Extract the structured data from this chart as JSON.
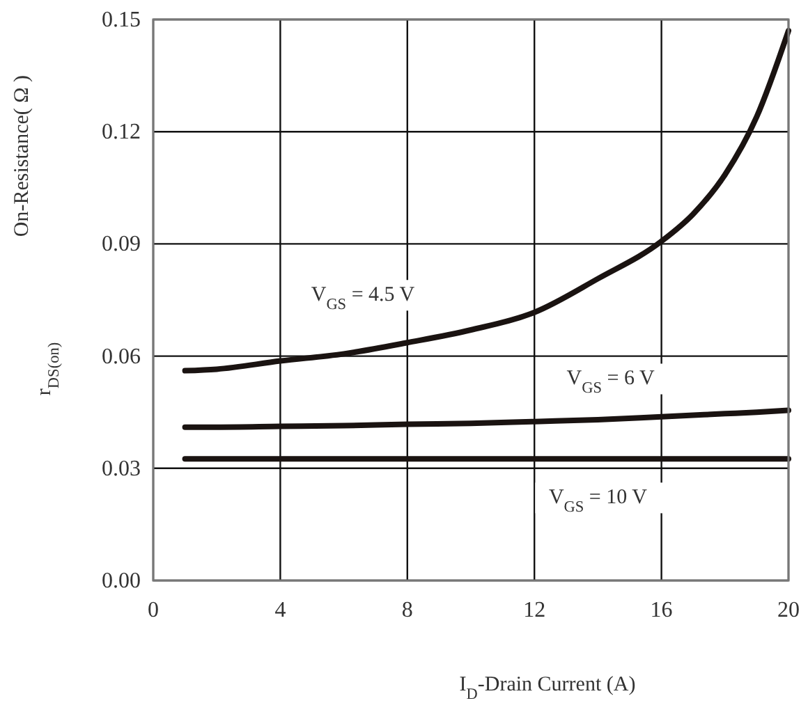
{
  "chart_data": {
    "type": "line",
    "xlabel": "I$_{D}$-Drain Current (A)",
    "ylabel": "On-Resistance( Ω )\nr$_{DS(on)}$",
    "x": [
      1,
      2,
      4,
      6,
      8,
      10,
      12,
      14,
      16,
      17,
      18,
      19,
      20
    ],
    "series": [
      {
        "name": "V$_{GS}$  = 4.5 V",
        "color": "#1a1311",
        "values": [
          0.0561,
          0.0565,
          0.0587,
          0.0606,
          0.0636,
          0.067,
          0.0717,
          0.0807,
          0.0907,
          0.098,
          0.1085,
          0.124,
          0.147
        ]
      },
      {
        "name": "V$_{GS}$  = 6 V",
        "color": "#1a1311",
        "values": [
          0.041,
          0.041,
          0.0412,
          0.0414,
          0.0418,
          0.042,
          0.0425,
          0.043,
          0.0438,
          0.0442,
          0.0446,
          0.045,
          0.0455
        ]
      },
      {
        "name": "V$_{GS}$  = 10 V",
        "color": "#1a1311",
        "values": [
          0.0325,
          0.0325,
          0.0325,
          0.0325,
          0.0325,
          0.0325,
          0.0325,
          0.0325,
          0.0325,
          0.0325,
          0.0325,
          0.0325,
          0.0325
        ]
      }
    ],
    "xlim": [
      0,
      20
    ],
    "xticks": [
      0,
      4,
      8,
      12,
      16,
      20
    ],
    "ylim": [
      0,
      0.15
    ],
    "yticks": [
      {
        "value": 0,
        "label": "0.00"
      },
      0.03,
      0.06,
      0.09,
      0.12,
      0.15
    ],
    "grid": true,
    "marker": "none",
    "line_style": "solid"
  }
}
